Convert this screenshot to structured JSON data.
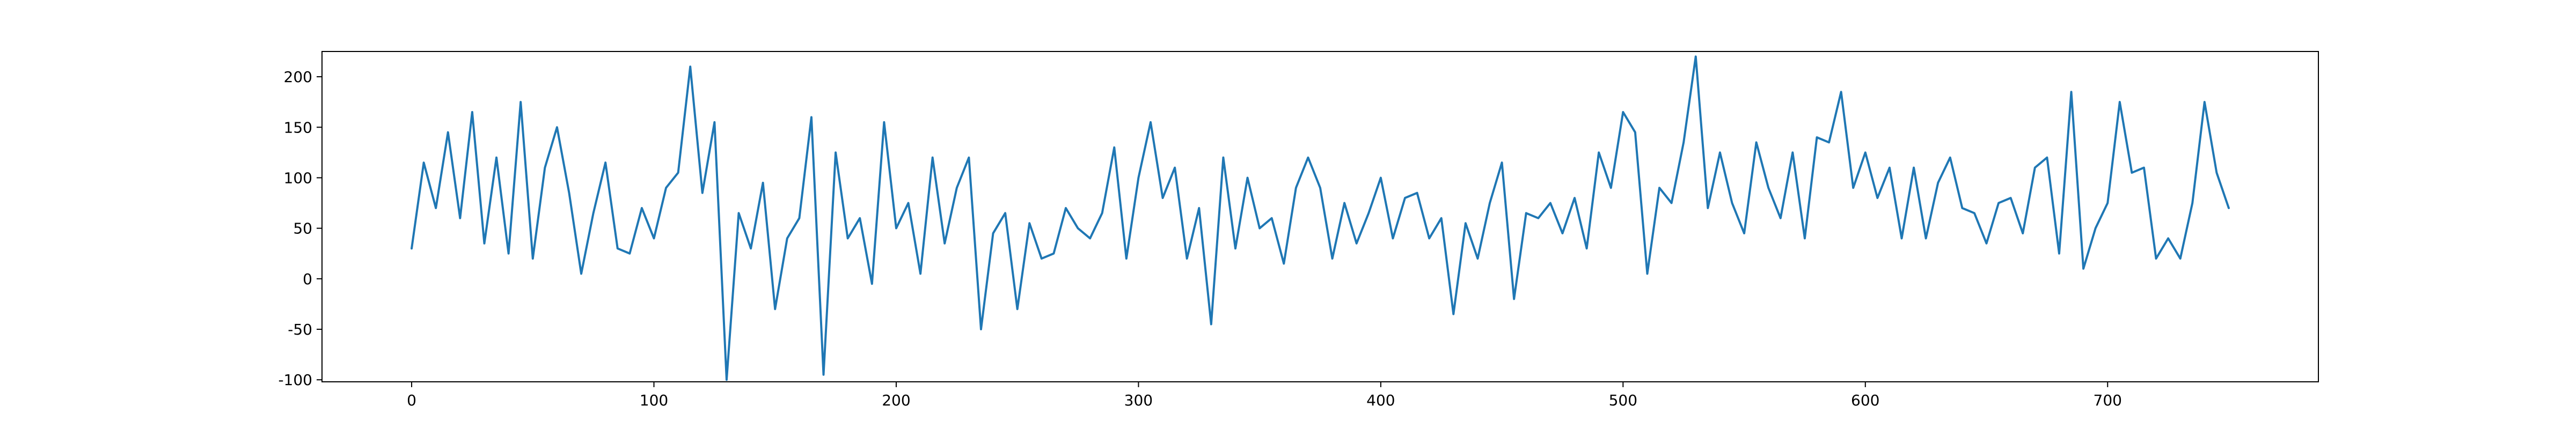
{
  "chart_data": {
    "type": "line",
    "title": "",
    "xlabel": "",
    "ylabel": "",
    "xlim": [
      -37,
      787
    ],
    "ylim": [
      -102,
      225
    ],
    "grid": false,
    "x_ticks": [
      0,
      100,
      200,
      300,
      400,
      500,
      600,
      700
    ],
    "y_ticks": [
      -100,
      -50,
      0,
      50,
      100,
      150,
      200
    ],
    "series": [
      {
        "name": "",
        "color": "#1f77b4",
        "x_start": 0,
        "x_step": 5,
        "values": [
          30,
          115,
          70,
          145,
          60,
          165,
          35,
          120,
          25,
          175,
          20,
          110,
          150,
          85,
          5,
          65,
          115,
          30,
          25,
          70,
          40,
          90,
          105,
          210,
          85,
          155,
          -100,
          65,
          30,
          95,
          -30,
          40,
          60,
          160,
          -95,
          125,
          40,
          60,
          -5,
          155,
          50,
          75,
          5,
          120,
          35,
          90,
          120,
          -50,
          45,
          65,
          -30,
          55,
          20,
          25,
          70,
          50,
          40,
          65,
          130,
          20,
          100,
          155,
          80,
          110,
          20,
          70,
          -45,
          120,
          30,
          100,
          50,
          60,
          15,
          90,
          120,
          90,
          20,
          75,
          35,
          65,
          100,
          40,
          80,
          85,
          40,
          60,
          -35,
          55,
          20,
          75,
          115,
          -20,
          65,
          60,
          75,
          45,
          80,
          30,
          125,
          90,
          165,
          145,
          5,
          90,
          75,
          135,
          220,
          70,
          125,
          75,
          45,
          135,
          90,
          60,
          125,
          40,
          140,
          135,
          185,
          90,
          125,
          80,
          110,
          40,
          110,
          40,
          95,
          120,
          70,
          65,
          35,
          75,
          80,
          45,
          110,
          120,
          25,
          185,
          10,
          50,
          75,
          175,
          105,
          110,
          20,
          40,
          20,
          75,
          175,
          105,
          70
        ]
      }
    ]
  }
}
